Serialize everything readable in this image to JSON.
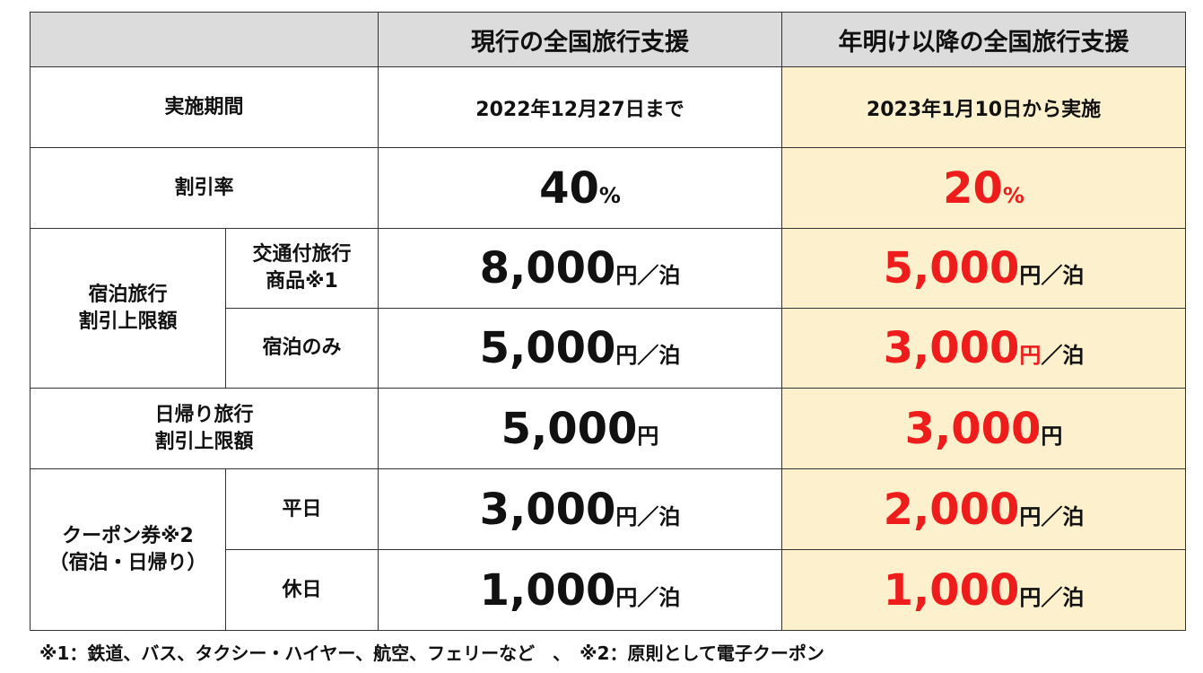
{
  "header": {
    "col_current": "現行の全国旅行支援",
    "col_new": "年明け以降の全国旅行支援"
  },
  "rows": {
    "period": {
      "label": "実施期間",
      "current": "2022年12月27日まで",
      "new": "2023年1月10日から実施"
    },
    "rate": {
      "label": "割引率",
      "current_value": "40",
      "new_value": "20",
      "unit": "%"
    },
    "lodging": {
      "label_line1": "宿泊旅行",
      "label_line2": "割引上限額",
      "with_transport": {
        "sub_line1": "交通付旅行",
        "sub_line2": "商品※1",
        "current": "8,000",
        "new": "5,000"
      },
      "stay_only": {
        "sub": "宿泊のみ",
        "current": "5,000",
        "new": "3,000"
      }
    },
    "day_trip": {
      "label_line1": "日帰り旅行",
      "label_line2": "割引上限額",
      "current": "5,000",
      "new": "3,000"
    },
    "coupon": {
      "label_line1": "クーポン券※2",
      "label_line2": "（宿泊・日帰り）",
      "weekday": {
        "sub": "平日",
        "current": "3,000",
        "new": "2,000"
      },
      "holiday": {
        "sub": "休日",
        "current": "1,000",
        "new": "1,000"
      }
    }
  },
  "units": {
    "yen": "円",
    "per_night": "／泊"
  },
  "footnote": "※1：鉄道、バス、タクシー・ハイヤー、航空、フェリーなど　、　※2：原則として電子クーポン",
  "colors": {
    "header_bg": "#dcdcdc",
    "highlight_bg": "#fdf0cd",
    "accent_red": "#ef1c1c"
  }
}
